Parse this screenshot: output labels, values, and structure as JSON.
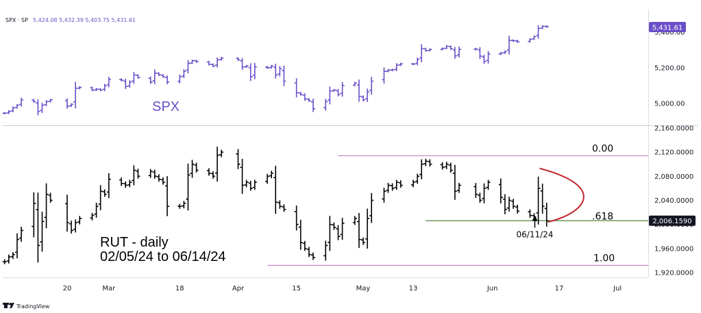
{
  "header": {
    "symbol": "SPX · SP",
    "ohlc": "5,424.08 5,432.39 5,403.75 5,431.61"
  },
  "spx_last_price_badge": "5,431.61",
  "watermark": "TradingView",
  "colors": {
    "spx": "#6a4fc8",
    "rut": "#000000",
    "fib_line": "#c77dc5",
    "fib_618_line": "#4f8a3a",
    "arc": "#c0282f",
    "badge_spx": "#6a4fc8",
    "badge_rut": "#131722"
  },
  "x_axis": {
    "tick_labels": [
      "20",
      "Mar",
      "18",
      "Apr",
      "15",
      "May",
      "13",
      "Jun",
      "17",
      "Jul"
    ],
    "tick_dates": [
      "2024-02-20",
      "2024-03-01",
      "2024-03-18",
      "2024-04-01",
      "2024-04-15",
      "2024-05-01",
      "2024-05-13",
      "2024-06-01",
      "2024-06-17",
      "2024-07-01"
    ]
  },
  "chart_data": [
    {
      "type": "ohlc",
      "name": "SPX",
      "label": "SPX",
      "y_ticks": [
        "5,000.00",
        "5,200.00",
        "5,400.00"
      ],
      "y_tick_values": [
        5000,
        5200,
        5400
      ],
      "ylim": [
        4930,
        5480
      ],
      "last_price": 5431.61,
      "points": [
        {
          "d": "2024-02-05",
          "v": 4945
        },
        {
          "d": "2024-02-06",
          "v": 4955
        },
        {
          "d": "2024-02-07",
          "v": 4975
        },
        {
          "d": "2024-02-08",
          "v": 4990
        },
        {
          "d": "2024-02-09",
          "v": 5020
        },
        {
          "d": "2024-02-12",
          "v": 5010
        },
        {
          "d": "2024-02-13",
          "v": 4955
        },
        {
          "d": "2024-02-14",
          "v": 4990
        },
        {
          "d": "2024-02-15",
          "v": 5010
        },
        {
          "d": "2024-02-16",
          "v": 5020
        },
        {
          "d": "2024-02-20",
          "v": 4985
        },
        {
          "d": "2024-02-21",
          "v": 4995
        },
        {
          "d": "2024-02-22",
          "v": 5085
        },
        {
          "d": "2024-02-23",
          "v": 5090
        },
        {
          "d": "2024-02-26",
          "v": 5075
        },
        {
          "d": "2024-02-27",
          "v": 5080
        },
        {
          "d": "2024-02-28",
          "v": 5075
        },
        {
          "d": "2024-02-29",
          "v": 5100
        },
        {
          "d": "2024-03-01",
          "v": 5135
        },
        {
          "d": "2024-03-04",
          "v": 5130
        },
        {
          "d": "2024-03-05",
          "v": 5095
        },
        {
          "d": "2024-03-06",
          "v": 5120
        },
        {
          "d": "2024-03-07",
          "v": 5160
        },
        {
          "d": "2024-03-08",
          "v": 5145
        },
        {
          "d": "2024-03-11",
          "v": 5120
        },
        {
          "d": "2024-03-12",
          "v": 5170
        },
        {
          "d": "2024-03-13",
          "v": 5160
        },
        {
          "d": "2024-03-14",
          "v": 5150
        },
        {
          "d": "2024-03-15",
          "v": 5120
        },
        {
          "d": "2024-03-18",
          "v": 5150
        },
        {
          "d": "2024-03-19",
          "v": 5180
        },
        {
          "d": "2024-03-20",
          "v": 5225
        },
        {
          "d": "2024-03-21",
          "v": 5240
        },
        {
          "d": "2024-03-22",
          "v": 5235
        },
        {
          "d": "2024-03-25",
          "v": 5220
        },
        {
          "d": "2024-03-26",
          "v": 5210
        },
        {
          "d": "2024-03-27",
          "v": 5245
        },
        {
          "d": "2024-03-28",
          "v": 5255
        },
        {
          "d": "2024-04-01",
          "v": 5245
        },
        {
          "d": "2024-04-02",
          "v": 5205
        },
        {
          "d": "2024-04-03",
          "v": 5210
        },
        {
          "d": "2024-04-04",
          "v": 5150
        },
        {
          "d": "2024-04-05",
          "v": 5205
        },
        {
          "d": "2024-04-08",
          "v": 5200
        },
        {
          "d": "2024-04-09",
          "v": 5210
        },
        {
          "d": "2024-04-10",
          "v": 5160
        },
        {
          "d": "2024-04-11",
          "v": 5195
        },
        {
          "d": "2024-04-12",
          "v": 5125
        },
        {
          "d": "2024-04-15",
          "v": 5060
        },
        {
          "d": "2024-04-16",
          "v": 5050
        },
        {
          "d": "2024-04-17",
          "v": 5025
        },
        {
          "d": "2024-04-18",
          "v": 5015
        },
        {
          "d": "2024-04-19",
          "v": 4970
        },
        {
          "d": "2024-04-22",
          "v": 5010
        },
        {
          "d": "2024-04-23",
          "v": 5070
        },
        {
          "d": "2024-04-24",
          "v": 5075
        },
        {
          "d": "2024-04-25",
          "v": 5050
        },
        {
          "d": "2024-04-26",
          "v": 5100
        },
        {
          "d": "2024-04-29",
          "v": 5115
        },
        {
          "d": "2024-04-30",
          "v": 5040
        },
        {
          "d": "2024-05-01",
          "v": 5020
        },
        {
          "d": "2024-05-02",
          "v": 5065
        },
        {
          "d": "2024-05-03",
          "v": 5125
        },
        {
          "d": "2024-05-06",
          "v": 5180
        },
        {
          "d": "2024-05-07",
          "v": 5187
        },
        {
          "d": "2024-05-08",
          "v": 5188
        },
        {
          "d": "2024-05-09",
          "v": 5215
        },
        {
          "d": "2024-05-10",
          "v": 5222
        },
        {
          "d": "2024-05-13",
          "v": 5221
        },
        {
          "d": "2024-05-14",
          "v": 5247
        },
        {
          "d": "2024-05-15",
          "v": 5308
        },
        {
          "d": "2024-05-16",
          "v": 5297
        },
        {
          "d": "2024-05-17",
          "v": 5303
        },
        {
          "d": "2024-05-20",
          "v": 5308
        },
        {
          "d": "2024-05-21",
          "v": 5321
        },
        {
          "d": "2024-05-22",
          "v": 5307
        },
        {
          "d": "2024-05-23",
          "v": 5267
        },
        {
          "d": "2024-05-24",
          "v": 5304
        },
        {
          "d": "2024-05-28",
          "v": 5306
        },
        {
          "d": "2024-05-29",
          "v": 5266
        },
        {
          "d": "2024-05-30",
          "v": 5235
        },
        {
          "d": "2024-05-31",
          "v": 5277
        },
        {
          "d": "2024-06-03",
          "v": 5283
        },
        {
          "d": "2024-06-04",
          "v": 5291
        },
        {
          "d": "2024-06-05",
          "v": 5354
        },
        {
          "d": "2024-06-06",
          "v": 5352
        },
        {
          "d": "2024-06-07",
          "v": 5346
        },
        {
          "d": "2024-06-10",
          "v": 5360
        },
        {
          "d": "2024-06-11",
          "v": 5375
        },
        {
          "d": "2024-06-12",
          "v": 5421
        },
        {
          "d": "2024-06-13",
          "v": 5433
        },
        {
          "d": "2024-06-14",
          "v": 5431
        }
      ]
    },
    {
      "type": "ohlc",
      "name": "RUT",
      "annotation": "RUT - daily\n02/05/24 to 06/14/24",
      "annotation_lines": [
        "RUT - daily",
        "02/05/24 to 06/14/24"
      ],
      "y_ticks": [
        "1,920.0000",
        "1,960.0000",
        "2,000.0000",
        "2,040.0000",
        "2,080.0000",
        "2,120.0000",
        "2,160.0000"
      ],
      "y_tick_values": [
        1920,
        1960,
        2000,
        2040,
        2080,
        2120,
        2160
      ],
      "ylim": [
        1910,
        2165
      ],
      "last_price": "2,006.1590",
      "last_price_value": 2006.159,
      "fib_levels": [
        {
          "label": "0.00",
          "value": 2114,
          "start": "2024-04-25"
        },
        {
          "label": ".618",
          "value": 2006.159,
          "start": "2024-05-16"
        },
        {
          "label": "1.00",
          "value": 1932,
          "start": "2024-04-08"
        }
      ],
      "arrow_label": "06/11/24",
      "arrow_date": "2024-06-11",
      "points": [
        {
          "d": "2024-02-05",
          "v": 1938
        },
        {
          "d": "2024-02-06",
          "v": 1946
        },
        {
          "d": "2024-02-07",
          "v": 1950
        },
        {
          "d": "2024-02-08",
          "v": 1975
        },
        {
          "d": "2024-02-09",
          "v": 1990
        },
        {
          "d": "2024-02-12",
          "v": 2035
        },
        {
          "d": "2024-02-13",
          "v": 1965
        },
        {
          "d": "2024-02-14",
          "v": 2005
        },
        {
          "d": "2024-02-15",
          "v": 2050
        },
        {
          "d": "2024-02-16",
          "v": 2040
        },
        {
          "d": "2024-02-20",
          "v": 2003
        },
        {
          "d": "2024-02-21",
          "v": 1990
        },
        {
          "d": "2024-02-22",
          "v": 2003
        },
        {
          "d": "2024-02-23",
          "v": 2010
        },
        {
          "d": "2024-02-26",
          "v": 2015
        },
        {
          "d": "2024-02-27",
          "v": 2030
        },
        {
          "d": "2024-02-28",
          "v": 2055
        },
        {
          "d": "2024-02-29",
          "v": 2050
        },
        {
          "d": "2024-03-01",
          "v": 2075
        },
        {
          "d": "2024-03-04",
          "v": 2068
        },
        {
          "d": "2024-03-05",
          "v": 2065
        },
        {
          "d": "2024-03-06",
          "v": 2070
        },
        {
          "d": "2024-03-07",
          "v": 2090
        },
        {
          "d": "2024-03-08",
          "v": 2080
        },
        {
          "d": "2024-03-11",
          "v": 2088
        },
        {
          "d": "2024-03-12",
          "v": 2080
        },
        {
          "d": "2024-03-13",
          "v": 2075
        },
        {
          "d": "2024-03-14",
          "v": 2070
        },
        {
          "d": "2024-03-15",
          "v": 2030
        },
        {
          "d": "2024-03-18",
          "v": 2030
        },
        {
          "d": "2024-03-19",
          "v": 2035
        },
        {
          "d": "2024-03-20",
          "v": 2082
        },
        {
          "d": "2024-03-21",
          "v": 2100
        },
        {
          "d": "2024-03-22",
          "v": 2090
        },
        {
          "d": "2024-03-25",
          "v": 2085
        },
        {
          "d": "2024-03-26",
          "v": 2080
        },
        {
          "d": "2024-03-27",
          "v": 2115
        },
        {
          "d": "2024-03-28",
          "v": 2120
        },
        {
          "d": "2024-04-01",
          "v": 2100
        },
        {
          "d": "2024-04-02",
          "v": 2065
        },
        {
          "d": "2024-04-03",
          "v": 2070
        },
        {
          "d": "2024-04-04",
          "v": 2060
        },
        {
          "d": "2024-04-05",
          "v": 2070
        },
        {
          "d": "2024-04-08",
          "v": 2080
        },
        {
          "d": "2024-04-09",
          "v": 2085
        },
        {
          "d": "2024-04-10",
          "v": 2037
        },
        {
          "d": "2024-04-11",
          "v": 2030
        },
        {
          "d": "2024-04-12",
          "v": 2025
        },
        {
          "d": "2024-04-15",
          "v": 2000
        },
        {
          "d": "2024-04-16",
          "v": 1970
        },
        {
          "d": "2024-04-17",
          "v": 1960
        },
        {
          "d": "2024-04-18",
          "v": 1950
        },
        {
          "d": "2024-04-19",
          "v": 1945
        },
        {
          "d": "2024-04-22",
          "v": 1965
        },
        {
          "d": "2024-04-23",
          "v": 2000
        },
        {
          "d": "2024-04-24",
          "v": 1995
        },
        {
          "d": "2024-04-25",
          "v": 1980
        },
        {
          "d": "2024-04-26",
          "v": 2002
        },
        {
          "d": "2024-04-29",
          "v": 2010
        },
        {
          "d": "2024-04-30",
          "v": 1975
        },
        {
          "d": "2024-05-01",
          "v": 1970
        },
        {
          "d": "2024-05-02",
          "v": 2010
        },
        {
          "d": "2024-05-03",
          "v": 2040
        },
        {
          "d": "2024-05-06",
          "v": 2055
        },
        {
          "d": "2024-05-07",
          "v": 2065
        },
        {
          "d": "2024-05-08",
          "v": 2060
        },
        {
          "d": "2024-05-09",
          "v": 2070
        },
        {
          "d": "2024-05-10",
          "v": 2065
        },
        {
          "d": "2024-05-13",
          "v": 2070
        },
        {
          "d": "2024-05-14",
          "v": 2080
        },
        {
          "d": "2024-05-15",
          "v": 2100
        },
        {
          "d": "2024-05-16",
          "v": 2105
        },
        {
          "d": "2024-05-17",
          "v": 2100
        },
        {
          "d": "2024-05-20",
          "v": 2095
        },
        {
          "d": "2024-05-21",
          "v": 2100
        },
        {
          "d": "2024-05-22",
          "v": 2090
        },
        {
          "d": "2024-05-23",
          "v": 2055
        },
        {
          "d": "2024-05-24",
          "v": 2065
        },
        {
          "d": "2024-05-28",
          "v": 2050
        },
        {
          "d": "2024-05-29",
          "v": 2040
        },
        {
          "d": "2024-05-30",
          "v": 2060
        },
        {
          "d": "2024-05-31",
          "v": 2070
        },
        {
          "d": "2024-06-03",
          "v": 2045
        },
        {
          "d": "2024-06-04",
          "v": 2025
        },
        {
          "d": "2024-06-05",
          "v": 2040
        },
        {
          "d": "2024-06-06",
          "v": 2030
        },
        {
          "d": "2024-06-07",
          "v": 2022
        },
        {
          "d": "2024-06-10",
          "v": 2015
        },
        {
          "d": "2024-06-11",
          "v": 2012
        },
        {
          "d": "2024-06-12",
          "v": 2060
        },
        {
          "d": "2024-06-13",
          "v": 2030
        },
        {
          "d": "2024-06-14",
          "v": 2006
        }
      ]
    }
  ]
}
